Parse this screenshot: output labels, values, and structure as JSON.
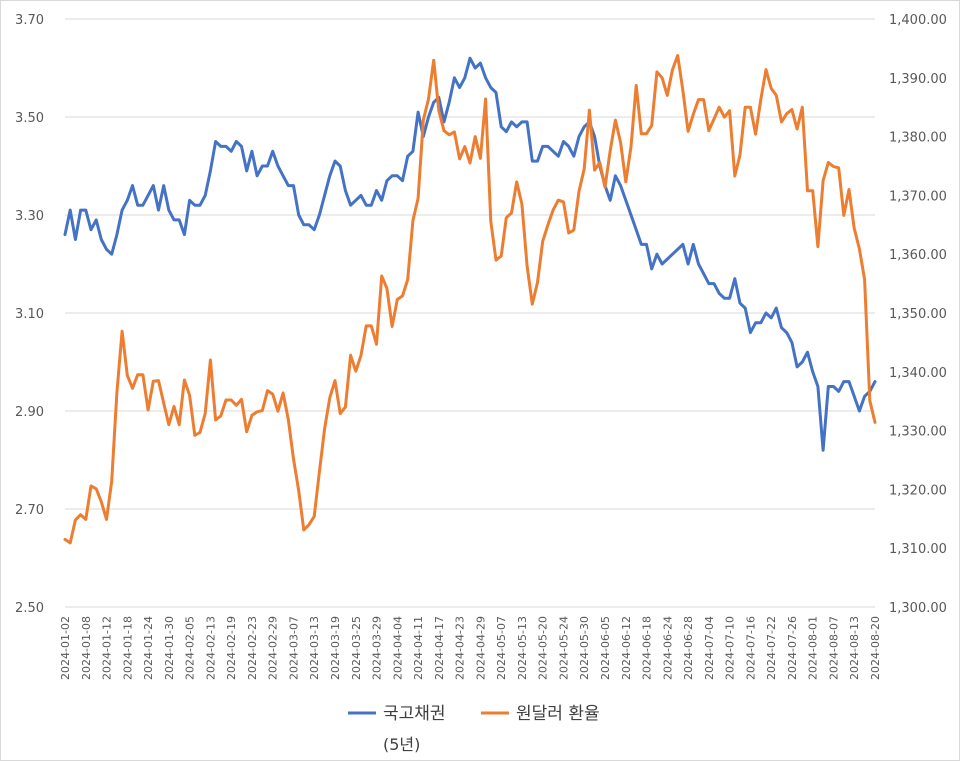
{
  "chart_data": {
    "type": "line",
    "title": "",
    "grid": true,
    "legend_position": "bottom",
    "left_axis": {
      "ylim": [
        2.5,
        3.7
      ],
      "ticks": [
        "2.50",
        "2.70",
        "2.90",
        "3.10",
        "3.30",
        "3.50",
        "3.70"
      ]
    },
    "right_axis": {
      "ylim": [
        1300,
        1400
      ],
      "ticks": [
        "1,300.00",
        "1,310.00",
        "1,320.00",
        "1,330.00",
        "1,340.00",
        "1,350.00",
        "1,360.00",
        "1,370.00",
        "1,380.00",
        "1,390.00",
        "1,400.00"
      ]
    },
    "x_tick_labels": [
      "2024-01-02",
      "2024-01-08",
      "2024-01-12",
      "2024-01-18",
      "2024-01-24",
      "2024-01-30",
      "2024-02-05",
      "2024-02-13",
      "2024-02-19",
      "2024-02-23",
      "2024-02-29",
      "2024-03-07",
      "2024-03-13",
      "2024-03-19",
      "2024-03-25",
      "2024-03-29",
      "2024-04-04",
      "2024-04-11",
      "2024-04-17",
      "2024-04-23",
      "2024-04-29",
      "2024-05-07",
      "2024-05-13",
      "2024-05-20",
      "2024-05-24",
      "2024-05-30",
      "2024-06-05",
      "2024-06-12",
      "2024-06-18",
      "2024-06-24",
      "2024-06-28",
      "2024-07-04",
      "2024-07-10",
      "2024-07-16",
      "2024-07-22",
      "2024-07-26",
      "2024-08-01",
      "2024-08-07",
      "2024-08-13",
      "2024-08-20"
    ],
    "series": [
      {
        "name": "국고채권",
        "axis": "left",
        "color": "#4472c4",
        "values": [
          3.26,
          3.31,
          3.25,
          3.31,
          3.31,
          3.27,
          3.29,
          3.25,
          3.23,
          3.22,
          3.26,
          3.31,
          3.33,
          3.36,
          3.32,
          3.32,
          3.34,
          3.36,
          3.31,
          3.36,
          3.31,
          3.29,
          3.29,
          3.26,
          3.33,
          3.32,
          3.32,
          3.34,
          3.39,
          3.45,
          3.44,
          3.44,
          3.43,
          3.45,
          3.44,
          3.39,
          3.43,
          3.38,
          3.4,
          3.4,
          3.43,
          3.4,
          3.38,
          3.36,
          3.36,
          3.3,
          3.28,
          3.28,
          3.27,
          3.3,
          3.34,
          3.38,
          3.41,
          3.4,
          3.35,
          3.32,
          3.33,
          3.34,
          3.32,
          3.32,
          3.35,
          3.33,
          3.37,
          3.38,
          3.38,
          3.37,
          3.42,
          3.43,
          3.51,
          3.46,
          3.5,
          3.53,
          3.54,
          3.49,
          3.53,
          3.58,
          3.56,
          3.58,
          3.62,
          3.6,
          3.61,
          3.58,
          3.56,
          3.55,
          3.48,
          3.47,
          3.49,
          3.48,
          3.49,
          3.49,
          3.41,
          3.41,
          3.44,
          3.44,
          3.43,
          3.42,
          3.45,
          3.44,
          3.42,
          3.46,
          3.48,
          3.49,
          3.46,
          3.4,
          3.36,
          3.33,
          3.38,
          3.36,
          3.33,
          3.3,
          3.27,
          3.24,
          3.24,
          3.19,
          3.22,
          3.2,
          3.21,
          3.22,
          3.23,
          3.24,
          3.2,
          3.24,
          3.2,
          3.18,
          3.16,
          3.16,
          3.14,
          3.13,
          3.13,
          3.17,
          3.12,
          3.11,
          3.06,
          3.08,
          3.08,
          3.1,
          3.09,
          3.11,
          3.07,
          3.06,
          3.04,
          2.99,
          3.0,
          3.02,
          2.98,
          2.95,
          2.82,
          2.95,
          2.95,
          2.94,
          2.96,
          2.96,
          2.93,
          2.9,
          2.93,
          2.94,
          2.96
        ]
      },
      {
        "name": "원달러 환율",
        "axis": "right",
        "color": "#ed7d31",
        "values": [
          1311.5,
          1310.9,
          1314.8,
          1315.7,
          1314.9,
          1320.6,
          1320.1,
          1317.9,
          1314.9,
          1321.4,
          1336.5,
          1346.9,
          1339.4,
          1337.2,
          1339.5,
          1339.5,
          1333.5,
          1338.4,
          1338.5,
          1334.7,
          1331.0,
          1334.1,
          1331.0,
          1338.6,
          1336.0,
          1329.2,
          1329.7,
          1332.9,
          1342.0,
          1331.8,
          1332.5,
          1335.2,
          1335.2,
          1334.3,
          1335.3,
          1329.8,
          1332.6,
          1333.2,
          1333.4,
          1336.8,
          1336.2,
          1333.3,
          1336.4,
          1331.9,
          1325.2,
          1319.8,
          1313.1,
          1314.0,
          1315.4,
          1323.0,
          1330.3,
          1335.6,
          1338.5,
          1332.9,
          1334.0,
          1342.8,
          1340.1,
          1342.8,
          1347.8,
          1347.8,
          1344.7,
          1356.3,
          1354.2,
          1347.7,
          1352.3,
          1352.9,
          1355.7,
          1365.7,
          1369.5,
          1382.8,
          1386.4,
          1393.0,
          1384.4,
          1381.0,
          1380.3,
          1380.8,
          1376.2,
          1378.3,
          1375.5,
          1380.0,
          1376.3,
          1386.4,
          1365.6,
          1359.0,
          1359.7,
          1366.2,
          1367.0,
          1372.3,
          1368.5,
          1358.0,
          1351.5,
          1355.2,
          1362.2,
          1365.0,
          1367.5,
          1369.2,
          1368.9,
          1363.6,
          1364.1,
          1370.7,
          1374.5,
          1384.5,
          1374.3,
          1375.6,
          1371.4,
          1377.6,
          1382.8,
          1379.0,
          1372.3,
          1378.3,
          1388.7,
          1380.5,
          1380.5,
          1381.9,
          1391.0,
          1390.0,
          1387.0,
          1391.4,
          1393.8,
          1387.8,
          1380.9,
          1383.8,
          1386.3,
          1386.3,
          1381.0,
          1383.0,
          1385.0,
          1383.3,
          1384.4,
          1373.3,
          1376.9,
          1385.0,
          1385.0,
          1380.4,
          1386.3,
          1391.4,
          1388.2,
          1387.0,
          1382.5,
          1383.9,
          1384.6,
          1381.3,
          1385.0,
          1370.8,
          1370.8,
          1361.3,
          1372.5,
          1375.6,
          1374.9,
          1374.7,
          1366.6,
          1371.0,
          1364.4,
          1360.9,
          1355.7,
          1335.1,
          1331.4
        ]
      }
    ],
    "legend_note": "(5년)"
  }
}
